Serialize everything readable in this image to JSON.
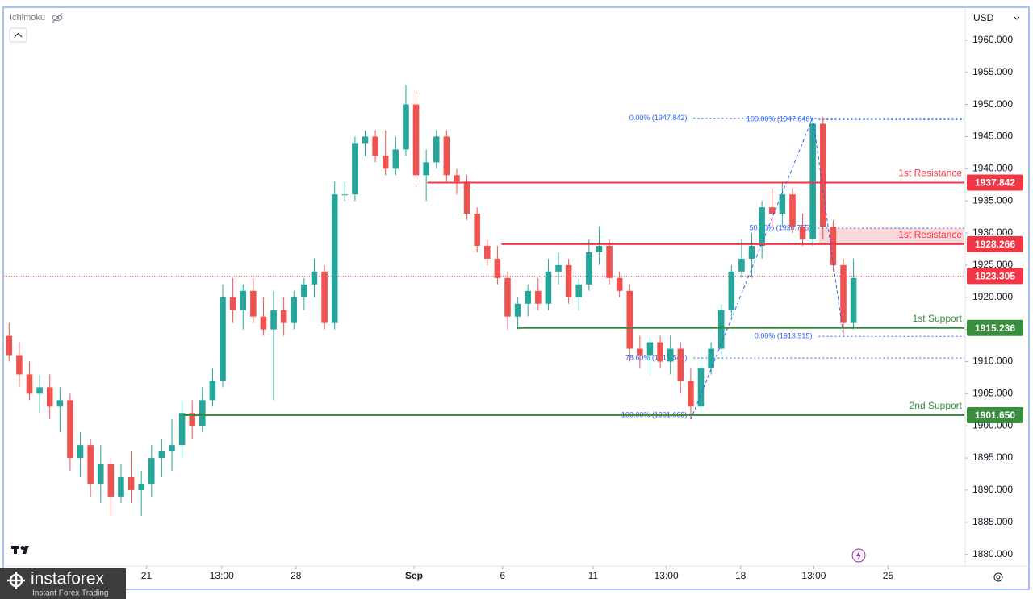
{
  "header": {
    "indicator": "Ichimoku",
    "currency": "USD"
  },
  "chart_data": {
    "type": "candlestick",
    "colors": {
      "up": "#26a69a",
      "down": "#ef5350"
    },
    "ohlc": [
      [
        1914,
        1916,
        1910,
        1911
      ],
      [
        1911,
        1913,
        1906,
        1908
      ],
      [
        1908,
        1910,
        1904,
        1905
      ],
      [
        1905,
        1908,
        1902,
        1906
      ],
      [
        1906,
        1908,
        1901,
        1903
      ],
      [
        1903,
        1906,
        1899,
        1904
      ],
      [
        1904,
        1905,
        1893,
        1895
      ],
      [
        1895,
        1899,
        1892,
        1897
      ],
      [
        1897,
        1898,
        1889,
        1891
      ],
      [
        1891,
        1897,
        1888,
        1894
      ],
      [
        1894,
        1895,
        1886,
        1889
      ],
      [
        1889,
        1894,
        1888,
        1892
      ],
      [
        1892,
        1896,
        1888,
        1890
      ],
      [
        1890,
        1893,
        1886,
        1891
      ],
      [
        1891,
        1897,
        1889,
        1895
      ],
      [
        1895,
        1898,
        1892,
        1896
      ],
      [
        1896,
        1901,
        1893,
        1897
      ],
      [
        1897,
        1904,
        1895,
        1902
      ],
      [
        1902,
        1904,
        1898,
        1900
      ],
      [
        1900,
        1906,
        1899,
        1904
      ],
      [
        1904,
        1909,
        1903,
        1907
      ],
      [
        1907,
        1922,
        1906,
        1920
      ],
      [
        1920,
        1923,
        1916,
        1918
      ],
      [
        1918,
        1922,
        1915,
        1921
      ],
      [
        1921,
        1923,
        1916,
        1917
      ],
      [
        1917,
        1920,
        1914,
        1915
      ],
      [
        1915,
        1921,
        1904,
        1918
      ],
      [
        1918,
        1920,
        1914,
        1916
      ],
      [
        1916,
        1921,
        1915,
        1920
      ],
      [
        1920,
        1923,
        1918,
        1922
      ],
      [
        1922,
        1926,
        1920,
        1924
      ],
      [
        1924,
        1925,
        1915,
        1916
      ],
      [
        1916,
        1938,
        1915,
        1936
      ],
      [
        1936,
        1938,
        1935,
        1936
      ],
      [
        1936,
        1945,
        1935,
        1944
      ],
      [
        1944,
        1946,
        1942,
        1945
      ],
      [
        1945,
        1946,
        1941,
        1942
      ],
      [
        1942,
        1946,
        1939,
        1940
      ],
      [
        1940,
        1945,
        1939,
        1943
      ],
      [
        1943,
        1953,
        1942,
        1950
      ],
      [
        1950,
        1952,
        1938,
        1939
      ],
      [
        1939,
        1943,
        1935,
        1941
      ],
      [
        1941,
        1946,
        1940,
        1945
      ],
      [
        1945,
        1946,
        1938,
        1939
      ],
      [
        1939,
        1940,
        1936,
        1938
      ],
      [
        1938,
        1939,
        1932,
        1933
      ],
      [
        1933,
        1934,
        1927,
        1928
      ],
      [
        1928,
        1929,
        1925,
        1926
      ],
      [
        1926,
        1928,
        1922,
        1923
      ],
      [
        1923,
        1924,
        1915,
        1917
      ],
      [
        1917,
        1920,
        1915,
        1919
      ],
      [
        1919,
        1922,
        1917,
        1921
      ],
      [
        1921,
        1923,
        1918,
        1919
      ],
      [
        1919,
        1926,
        1918,
        1924
      ],
      [
        1924,
        1927,
        1922,
        1925
      ],
      [
        1925,
        1926,
        1919,
        1920
      ],
      [
        1920,
        1923,
        1918,
        1922
      ],
      [
        1922,
        1929,
        1921,
        1927
      ],
      [
        1927,
        1931,
        1925,
        1928
      ],
      [
        1928,
        1929,
        1922,
        1923
      ],
      [
        1923,
        1924,
        1920,
        1921
      ],
      [
        1921,
        1922,
        1910,
        1912
      ],
      [
        1912,
        1914,
        1909,
        1911
      ],
      [
        1911,
        1914,
        1908,
        1913
      ],
      [
        1913,
        1914,
        1909,
        1910
      ],
      [
        1910,
        1914,
        1908,
        1912
      ],
      [
        1912,
        1913,
        1905,
        1907
      ],
      [
        1907,
        1909,
        1901,
        1903
      ],
      [
        1903,
        1911,
        1902,
        1909
      ],
      [
        1909,
        1913,
        1908,
        1912
      ],
      [
        1912,
        1919,
        1911,
        1918
      ],
      [
        1918,
        1925,
        1917,
        1924
      ],
      [
        1924,
        1929,
        1923,
        1926
      ],
      [
        1926,
        1930,
        1923,
        1928
      ],
      [
        1928,
        1935,
        1926,
        1934
      ],
      [
        1934,
        1937,
        1931,
        1933
      ],
      [
        1933,
        1938,
        1931,
        1936
      ],
      [
        1936,
        1937,
        1930,
        1931
      ],
      [
        1931,
        1933,
        1928,
        1929
      ],
      [
        1929,
        1948,
        1928,
        1947
      ],
      [
        1947,
        1948,
        1929,
        1931
      ],
      [
        1931,
        1932,
        1924,
        1925
      ],
      [
        1925,
        1926,
        1914,
        1916
      ],
      [
        1916,
        1926,
        1915,
        1923
      ]
    ],
    "xlim": [
      0,
      94.4
    ],
    "xticks": [
      {
        "value": 14.0,
        "label": "21"
      },
      {
        "value": 21.4,
        "label": "13:00"
      },
      {
        "value": 28.7,
        "label": "28"
      },
      {
        "value": 40.3,
        "label": "Sep"
      },
      {
        "value": 49.0,
        "label": "6"
      },
      {
        "value": 57.9,
        "label": "11"
      },
      {
        "value": 65.1,
        "label": "13:00"
      },
      {
        "value": 72.4,
        "label": "18"
      },
      {
        "value": 79.6,
        "label": "13:00"
      },
      {
        "value": 86.9,
        "label": "25"
      }
    ],
    "ylim": [
      1878.2,
      1965.0
    ],
    "yticks": [
      {
        "value": 1960,
        "label": "1960.000"
      },
      {
        "value": 1955,
        "label": "1955.000"
      },
      {
        "value": 1950,
        "label": "1950.000"
      },
      {
        "value": 1945,
        "label": "1945.000"
      },
      {
        "value": 1940,
        "label": "1940.000"
      },
      {
        "value": 1935,
        "label": "1935.000"
      },
      {
        "value": 1930,
        "label": "1930.000"
      },
      {
        "value": 1925,
        "label": "1925.000"
      },
      {
        "value": 1920,
        "label": "1920.000"
      },
      {
        "value": 1915,
        "label": "1915.000"
      },
      {
        "value": 1910,
        "label": "1910.000"
      },
      {
        "value": 1905,
        "label": "1905.000"
      },
      {
        "value": 1900,
        "label": "1900.000"
      },
      {
        "value": 1895,
        "label": "1895.000"
      },
      {
        "value": 1890,
        "label": "1890.000"
      },
      {
        "value": 1885,
        "label": "1885.000"
      },
      {
        "value": 1880,
        "label": "1880.000"
      }
    ],
    "levels": [
      {
        "name": "1st Resistance",
        "value": 1937.842,
        "color": "#f23645",
        "x_start": 41.6
      },
      {
        "name": "1st Resistance",
        "value": 1928.266,
        "color": "#f23645",
        "x_start": 48.9
      },
      {
        "name": "1st Support",
        "value": 1915.236,
        "color": "#388e3c",
        "x_start": 50.4
      },
      {
        "name": "2nd Support",
        "value": 1901.65,
        "value_label": "1901.650",
        "color": "#388e3c",
        "x_start": 17.5
      }
    ],
    "fib": [
      {
        "text": "0.00% (1947.842)",
        "value": 1947.842,
        "x": 67.3
      },
      {
        "text": "100.00% (1947.646)",
        "value": 1947.646,
        "x": 79.6
      },
      {
        "text": "50.00% (1930.755)",
        "value": 1930.755,
        "x": 79.5
      },
      {
        "text": "78.60% (1910.540)",
        "value": 1910.54,
        "x": 67.3
      },
      {
        "text": "0.00% (1913.915)",
        "value": 1913.915,
        "x": 79.6
      },
      {
        "text": "100.00% (1901.668)",
        "value": 1901.668,
        "x": 67.3
      }
    ],
    "last_price": {
      "value": 1923.305,
      "color": "#f23645"
    }
  },
  "footer": {
    "brand": "instaforex",
    "tagline": "Instant Forex Trading"
  }
}
